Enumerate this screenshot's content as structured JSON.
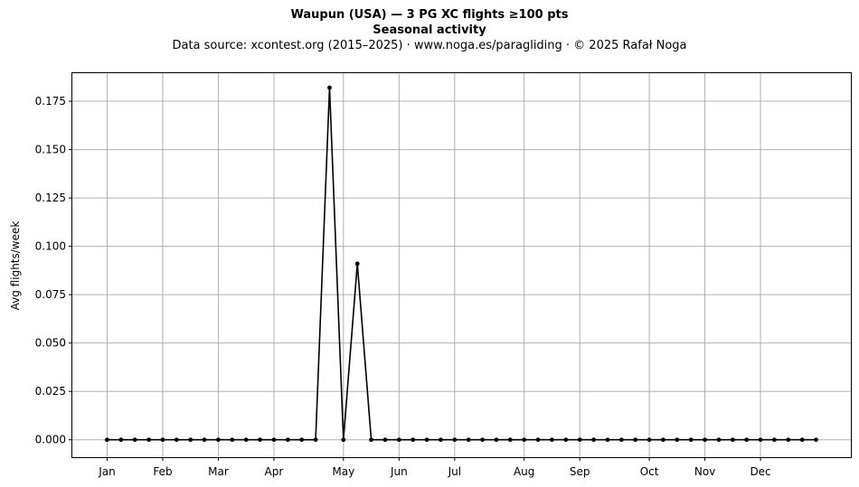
{
  "chart_data": {
    "type": "line",
    "title": "Waupun (USA)  —  3 PG XC flights ≥100 pts",
    "subtitle": "Seasonal activity",
    "source_line": "Data source: xcontest.org (2015–2025)  ·  www.noga.es/paragliding  ·  © 2025 Rafał Noga",
    "ylabel": "Avg flights/week",
    "ylim": [
      -0.009,
      0.1895
    ],
    "xlim": [
      -2.5,
      53.5
    ],
    "grid": true,
    "yticks": [
      0.0,
      0.025,
      0.05,
      0.075,
      0.1,
      0.125,
      0.15,
      0.175
    ],
    "ytick_labels": [
      "0.000",
      "0.025",
      "0.050",
      "0.075",
      "0.100",
      "0.125",
      "0.150",
      "0.175"
    ],
    "xticks": [
      0,
      4,
      8,
      12,
      17,
      21,
      25,
      30,
      34,
      39,
      43,
      47
    ],
    "xtick_labels": [
      "Jan",
      "Feb",
      "Mar",
      "Apr",
      "May",
      "Jun",
      "Jul",
      "Aug",
      "Sep",
      "Oct",
      "Nov",
      "Dec"
    ],
    "line_color": "#000000",
    "grid_color": "#b0b0b0",
    "series": [
      {
        "x": [
          0,
          1,
          2,
          3,
          4,
          5,
          6,
          7,
          8,
          9,
          10,
          11,
          12,
          13,
          14,
          15,
          16,
          17,
          18,
          19,
          20,
          21,
          22,
          23,
          24,
          25,
          26,
          27,
          28,
          29,
          30,
          31,
          32,
          33,
          34,
          35,
          36,
          37,
          38,
          39,
          40,
          41,
          42,
          43,
          44,
          45,
          46,
          47,
          48,
          49,
          50,
          51
        ],
        "values": [
          0,
          0,
          0,
          0,
          0,
          0,
          0,
          0,
          0,
          0,
          0,
          0,
          0,
          0,
          0,
          0,
          0.182,
          0,
          0.091,
          0,
          0,
          0,
          0,
          0,
          0,
          0,
          0,
          0,
          0,
          0,
          0,
          0,
          0,
          0,
          0,
          0,
          0,
          0,
          0,
          0,
          0,
          0,
          0,
          0,
          0,
          0,
          0,
          0,
          0,
          0,
          0,
          0
        ]
      }
    ]
  }
}
